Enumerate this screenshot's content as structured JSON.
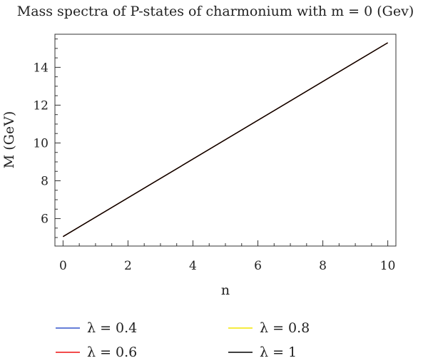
{
  "chart_data": {
    "type": "line",
    "title": "Mass spectra of P-states of charmonium with m = 0 (Gev)",
    "xlabel": "n",
    "ylabel": "M (GeV)",
    "xlim": [
      -0.25,
      10.25
    ],
    "ylim": [
      4.55,
      15.75
    ],
    "x_ticks": [
      0,
      2,
      4,
      6,
      8,
      10
    ],
    "x_tick_labels": [
      "0",
      "2",
      "4",
      "6",
      "8",
      "10"
    ],
    "y_ticks": [
      6,
      8,
      10,
      12,
      14
    ],
    "y_tick_labels": [
      "6",
      "8",
      "10",
      "12",
      "14"
    ],
    "grid": false,
    "legend_position": "bottom",
    "series": [
      {
        "name": "λ = 0.4",
        "color": "#3355cc",
        "x": [
          0,
          10
        ],
        "y": [
          5.05,
          15.3
        ]
      },
      {
        "name": "λ = 0.8",
        "color": "#f2e600",
        "x": [
          0,
          10
        ],
        "y": [
          5.05,
          15.3
        ]
      },
      {
        "name": "λ = 0.6",
        "color": "#ee1111",
        "x": [
          0,
          10
        ],
        "y": [
          5.05,
          15.3
        ]
      },
      {
        "name": "λ = 1",
        "color": "#000000",
        "x": [
          0,
          10
        ],
        "y": [
          5.05,
          15.3
        ]
      }
    ]
  }
}
